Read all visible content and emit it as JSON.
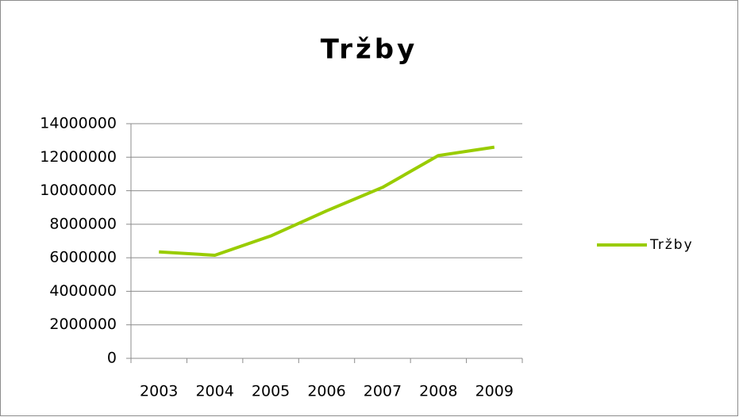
{
  "chart_data": {
    "type": "line",
    "title": "Tržby",
    "categories": [
      "2003",
      "2004",
      "2005",
      "2006",
      "2007",
      "2008",
      "2009"
    ],
    "series": [
      {
        "name": "Tržby",
        "color": "#99cc00",
        "values": [
          6350000,
          6150000,
          7300000,
          8800000,
          10200000,
          12100000,
          12600000
        ]
      }
    ],
    "ylim": [
      0,
      14000000
    ],
    "yticks": [
      0,
      2000000,
      4000000,
      6000000,
      8000000,
      10000000,
      12000000,
      14000000
    ],
    "grid": true,
    "legend": "right"
  }
}
